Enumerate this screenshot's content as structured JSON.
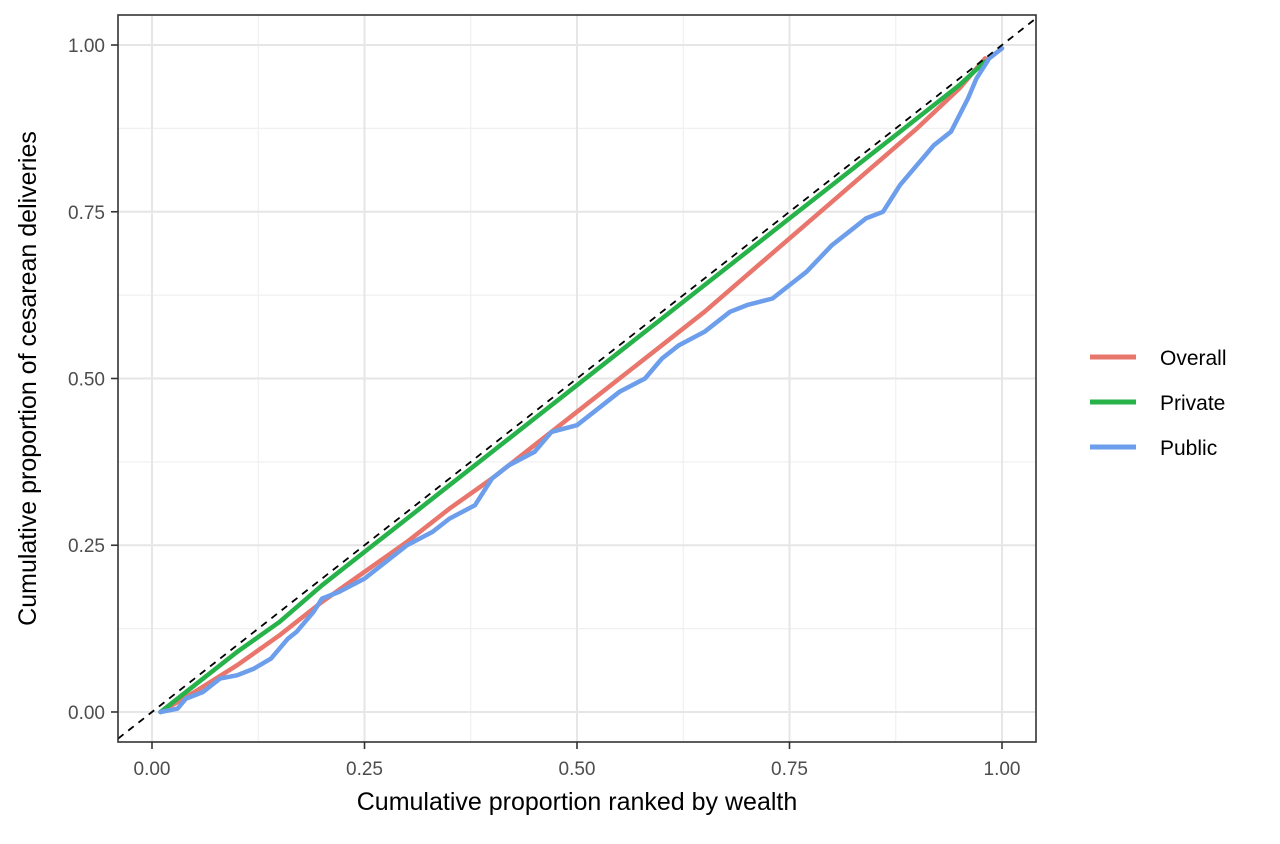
{
  "chart_data": {
    "type": "line",
    "title": "",
    "xlabel": "Cumulative proportion ranked by wealth",
    "ylabel": "Cumulative proportion of cesarean deliveries",
    "xlim": [
      -0.04,
      1.04
    ],
    "ylim": [
      -0.045,
      1.045
    ],
    "x_ticks": [
      0.0,
      0.25,
      0.5,
      0.75,
      1.0
    ],
    "x_tick_labels": [
      "0.00",
      "0.25",
      "0.50",
      "0.75",
      "1.00"
    ],
    "y_ticks": [
      0.0,
      0.25,
      0.5,
      0.75,
      1.0
    ],
    "y_tick_labels": [
      "0.00",
      "0.25",
      "0.50",
      "0.75",
      "1.00"
    ],
    "grid": true,
    "legend_position": "right",
    "equality_line": {
      "style": "dashed",
      "color": "#000000",
      "from": [
        -0.04,
        -0.04
      ],
      "to": [
        1.04,
        1.04
      ]
    },
    "series": [
      {
        "name": "Overall",
        "color": "#E8766D",
        "points": [
          [
            0.01,
            0.0
          ],
          [
            0.05,
            0.03
          ],
          [
            0.1,
            0.07
          ],
          [
            0.15,
            0.115
          ],
          [
            0.2,
            0.165
          ],
          [
            0.25,
            0.21
          ],
          [
            0.3,
            0.255
          ],
          [
            0.35,
            0.305
          ],
          [
            0.4,
            0.35
          ],
          [
            0.45,
            0.4
          ],
          [
            0.5,
            0.45
          ],
          [
            0.55,
            0.5
          ],
          [
            0.6,
            0.55
          ],
          [
            0.65,
            0.6
          ],
          [
            0.7,
            0.655
          ],
          [
            0.75,
            0.71
          ],
          [
            0.8,
            0.765
          ],
          [
            0.85,
            0.82
          ],
          [
            0.9,
            0.875
          ],
          [
            0.95,
            0.935
          ],
          [
            0.98,
            0.98
          ]
        ]
      },
      {
        "name": "Private",
        "color": "#27B24A",
        "points": [
          [
            0.01,
            0.0
          ],
          [
            0.05,
            0.04
          ],
          [
            0.1,
            0.09
          ],
          [
            0.15,
            0.135
          ],
          [
            0.2,
            0.19
          ],
          [
            0.25,
            0.24
          ],
          [
            0.3,
            0.29
          ],
          [
            0.35,
            0.34
          ],
          [
            0.4,
            0.39
          ],
          [
            0.45,
            0.44
          ],
          [
            0.5,
            0.49
          ],
          [
            0.55,
            0.54
          ],
          [
            0.6,
            0.59
          ],
          [
            0.65,
            0.64
          ],
          [
            0.7,
            0.69
          ],
          [
            0.75,
            0.74
          ],
          [
            0.8,
            0.79
          ],
          [
            0.85,
            0.84
          ],
          [
            0.9,
            0.89
          ],
          [
            0.95,
            0.94
          ],
          [
            0.98,
            0.975
          ]
        ]
      },
      {
        "name": "Public",
        "color": "#6D9EEB",
        "points": [
          [
            0.01,
            0.0
          ],
          [
            0.03,
            0.005
          ],
          [
            0.04,
            0.02
          ],
          [
            0.06,
            0.03
          ],
          [
            0.08,
            0.05
          ],
          [
            0.1,
            0.055
          ],
          [
            0.12,
            0.065
          ],
          [
            0.14,
            0.08
          ],
          [
            0.16,
            0.11
          ],
          [
            0.17,
            0.12
          ],
          [
            0.19,
            0.15
          ],
          [
            0.2,
            0.17
          ],
          [
            0.22,
            0.18
          ],
          [
            0.25,
            0.2
          ],
          [
            0.28,
            0.23
          ],
          [
            0.3,
            0.25
          ],
          [
            0.33,
            0.27
          ],
          [
            0.35,
            0.29
          ],
          [
            0.38,
            0.31
          ],
          [
            0.4,
            0.35
          ],
          [
            0.42,
            0.37
          ],
          [
            0.45,
            0.39
          ],
          [
            0.47,
            0.42
          ],
          [
            0.5,
            0.43
          ],
          [
            0.53,
            0.46
          ],
          [
            0.55,
            0.48
          ],
          [
            0.58,
            0.5
          ],
          [
            0.6,
            0.53
          ],
          [
            0.62,
            0.55
          ],
          [
            0.65,
            0.57
          ],
          [
            0.68,
            0.6
          ],
          [
            0.7,
            0.61
          ],
          [
            0.73,
            0.62
          ],
          [
            0.75,
            0.64
          ],
          [
            0.77,
            0.66
          ],
          [
            0.8,
            0.7
          ],
          [
            0.82,
            0.72
          ],
          [
            0.84,
            0.74
          ],
          [
            0.86,
            0.75
          ],
          [
            0.88,
            0.79
          ],
          [
            0.9,
            0.82
          ],
          [
            0.92,
            0.85
          ],
          [
            0.94,
            0.87
          ],
          [
            0.96,
            0.92
          ],
          [
            0.97,
            0.95
          ],
          [
            0.985,
            0.98
          ],
          [
            1.0,
            0.995
          ]
        ]
      }
    ]
  }
}
